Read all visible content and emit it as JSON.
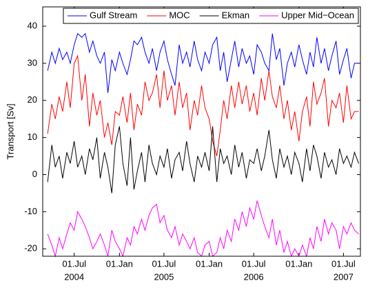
{
  "chart_data": {
    "type": "line",
    "y_label": "Transport [Sv]",
    "legend": "upper right",
    "x": [
      "2004-03-15",
      "2004-04-01",
      "2004-04-15",
      "2004-05-01",
      "2004-05-15",
      "2004-06-01",
      "2004-06-15",
      "2004-07-01",
      "2004-07-15",
      "2004-08-01",
      "2004-08-15",
      "2004-09-01",
      "2004-09-15",
      "2004-10-01",
      "2004-10-15",
      "2004-11-01",
      "2004-11-15",
      "2004-12-01",
      "2004-12-15",
      "2005-01-01",
      "2005-01-15",
      "2005-02-01",
      "2005-02-15",
      "2005-03-01",
      "2005-03-15",
      "2005-04-01",
      "2005-04-15",
      "2005-05-01",
      "2005-05-15",
      "2005-06-01",
      "2005-06-15",
      "2005-07-01",
      "2005-07-15",
      "2005-08-01",
      "2005-08-15",
      "2005-09-01",
      "2005-09-15",
      "2005-10-01",
      "2005-10-15",
      "2005-11-01",
      "2005-11-15",
      "2005-12-01",
      "2005-12-15",
      "2006-01-01",
      "2006-01-15",
      "2006-02-01",
      "2006-02-15",
      "2006-03-01",
      "2006-03-15",
      "2006-04-01",
      "2006-04-15",
      "2006-05-01",
      "2006-05-15",
      "2006-06-01",
      "2006-06-15",
      "2006-07-01",
      "2006-07-15",
      "2006-08-01",
      "2006-08-15",
      "2006-09-01",
      "2006-09-15",
      "2006-10-01",
      "2006-10-15",
      "2006-11-01",
      "2006-11-15",
      "2006-12-01",
      "2006-12-15",
      "2007-01-01",
      "2007-01-15",
      "2007-02-01",
      "2007-02-15",
      "2007-03-01",
      "2007-03-15",
      "2007-04-01",
      "2007-04-15",
      "2007-05-01",
      "2007-05-15",
      "2007-06-01",
      "2007-06-15",
      "2007-07-01",
      "2007-07-15",
      "2007-08-01",
      "2007-08-15",
      "2007-09-01"
    ],
    "series": [
      {
        "name": "Gulf Stream",
        "color": "#0000ff",
        "values": [
          28,
          33,
          30,
          34,
          31,
          33,
          30,
          35,
          38,
          37,
          38,
          33,
          36,
          32,
          30,
          33,
          22,
          31,
          28,
          33,
          30,
          27,
          31,
          36,
          35,
          37,
          33,
          30,
          34,
          28,
          33,
          36,
          31,
          27,
          24,
          35,
          30,
          33,
          29,
          36,
          31,
          28,
          33,
          30,
          35,
          37,
          28,
          33,
          25,
          31,
          36,
          29,
          34,
          30,
          32,
          27,
          35,
          33,
          30,
          28,
          38,
          31,
          34,
          24,
          30,
          33,
          29,
          35,
          31,
          27,
          33,
          29,
          37,
          30,
          34,
          28,
          32,
          36,
          27,
          31,
          34,
          26,
          30,
          30
        ]
      },
      {
        "name": "MOC",
        "color": "#ff0000",
        "values": [
          11,
          19,
          15,
          21,
          17,
          25,
          18,
          30,
          32,
          20,
          27,
          13,
          22,
          16,
          20,
          10,
          14,
          8,
          17,
          16,
          21,
          14,
          22,
          12,
          19,
          16,
          25,
          20,
          22,
          27,
          18,
          28,
          20,
          24,
          16,
          25,
          18,
          22,
          12,
          20,
          16,
          24,
          18,
          15,
          9,
          5,
          12,
          20,
          15,
          24,
          18,
          25,
          19,
          24,
          17,
          22,
          16,
          26,
          20,
          28,
          21,
          18,
          24,
          15,
          20,
          12,
          17,
          9,
          17,
          21,
          13,
          25,
          19,
          22,
          26,
          13,
          20,
          18,
          22,
          14,
          24,
          15,
          17,
          17
        ]
      },
      {
        "name": "Ekman",
        "color": "#000000",
        "values": [
          -2,
          8,
          2,
          5,
          -1,
          6,
          3,
          9,
          2,
          5,
          0,
          7,
          4,
          10,
          -1,
          6,
          2,
          -5,
          8,
          13,
          3,
          -3,
          10,
          -4,
          1,
          6,
          -2,
          8,
          3,
          0,
          5,
          2,
          7,
          -1,
          4,
          6,
          1,
          9,
          3,
          -2,
          5,
          2,
          6,
          1,
          13,
          -2,
          7,
          3,
          5,
          0,
          8,
          2,
          6,
          -1,
          4,
          3,
          7,
          1,
          5,
          12,
          4,
          -1,
          7,
          2,
          5,
          0,
          6,
          3,
          -2,
          7,
          1,
          8,
          5,
          -1,
          6,
          2,
          4,
          0,
          7,
          3,
          5,
          2,
          6,
          3
        ]
      },
      {
        "name": "Upper Mid−Ocean",
        "color": "#ff00ff",
        "values": [
          -16,
          -19,
          -22,
          -17,
          -20,
          -16,
          -13,
          -15,
          -10,
          -12,
          -14,
          -17,
          -20,
          -18,
          -16,
          -19,
          -22,
          -15,
          -18,
          -20,
          -22,
          -17,
          -19,
          -14,
          -16,
          -12,
          -15,
          -11,
          -9,
          -8,
          -13,
          -11,
          -15,
          -17,
          -14,
          -19,
          -16,
          -18,
          -20,
          -17,
          -21,
          -22,
          -19,
          -18,
          -22,
          -21,
          -17,
          -20,
          -15,
          -18,
          -12,
          -15,
          -10,
          -14,
          -9,
          -12,
          -7,
          -11,
          -14,
          -17,
          -12,
          -19,
          -15,
          -21,
          -18,
          -22,
          -20,
          -22,
          -19,
          -22,
          -17,
          -20,
          -14,
          -18,
          -12,
          -16,
          -13,
          -15,
          -20,
          -14,
          -16,
          -13,
          -15,
          -16
        ]
      }
    ],
    "xlim": [
      "2004-02-24",
      "2007-09-08"
    ],
    "xticks": [
      {
        "value": "2004-07-01",
        "label": "01.Jul"
      },
      {
        "value": "2005-01-01",
        "label": "01.Jan"
      },
      {
        "value": "2005-07-01",
        "label": "01.Jul"
      },
      {
        "value": "2006-01-01",
        "label": "01.Jan"
      },
      {
        "value": "2006-07-01",
        "label": "01.Jul"
      },
      {
        "value": "2007-01-01",
        "label": "01.Jan"
      },
      {
        "value": "2007-07-01",
        "label": "01.Jul"
      }
    ],
    "year_labels": [
      {
        "value": "2004-07-01",
        "label": "2004"
      },
      {
        "value": "2005-07-01",
        "label": "2005"
      },
      {
        "value": "2006-07-01",
        "label": "2006"
      },
      {
        "value": "2007-07-01",
        "label": "2007"
      }
    ],
    "ylim": [
      -22,
      45.2
    ],
    "yticks": [
      -20,
      -10,
      0,
      10,
      20,
      30,
      40
    ]
  }
}
